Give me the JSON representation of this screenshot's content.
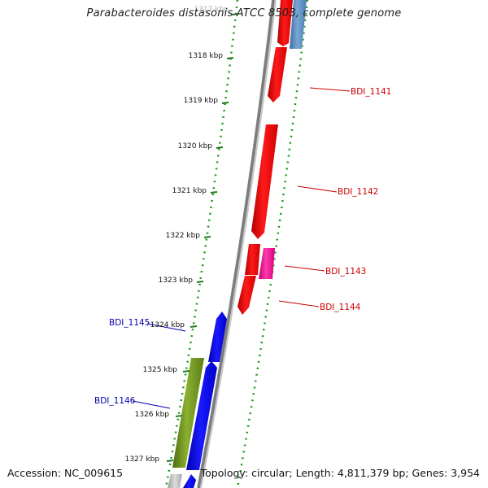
{
  "title": "Parabacteroides distasonis ATCC 8503, complete genome",
  "footer": {
    "accession": "Accession: NC_009615",
    "summary": "Topology: circular; Length: 4,811,379 bp; Genes: 3,954"
  },
  "colors": {
    "backbone": "#7d7d7d",
    "tick": "#1f7a1f",
    "forward_gene": "#ff0000",
    "reverse_gene": "#0000ff",
    "label_forward": "#cc0000",
    "label_reverse": "#0000aa",
    "pink_gene": "#ff2aa0",
    "steel_gene": "#5a8fc4",
    "olive_gene": "#6b8e23"
  },
  "scale": {
    "unit": "kbp",
    "ticks": [
      {
        "kbp": 1317,
        "label": "1317 kbp"
      },
      {
        "kbp": 1318,
        "label": "1318 kbp"
      },
      {
        "kbp": 1319,
        "label": "1319 kbp"
      },
      {
        "kbp": 1320,
        "label": "1320 kbp"
      },
      {
        "kbp": 1321,
        "label": "1321 kbp"
      },
      {
        "kbp": 1322,
        "label": "1322 kbp"
      },
      {
        "kbp": 1323,
        "label": "1323 kbp"
      },
      {
        "kbp": 1324,
        "label": "1324 kbp"
      },
      {
        "kbp": 1325,
        "label": "1325 kbp"
      },
      {
        "kbp": 1326,
        "label": "1326 kbp"
      },
      {
        "kbp": 1327,
        "label": "1327 kbp"
      }
    ]
  },
  "genes": {
    "forward": [
      "BDI_1141",
      "BDI_1142",
      "BDI_1143",
      "BDI_1144"
    ],
    "reverse": [
      "BDI_1145",
      "BDI_1146"
    ]
  }
}
